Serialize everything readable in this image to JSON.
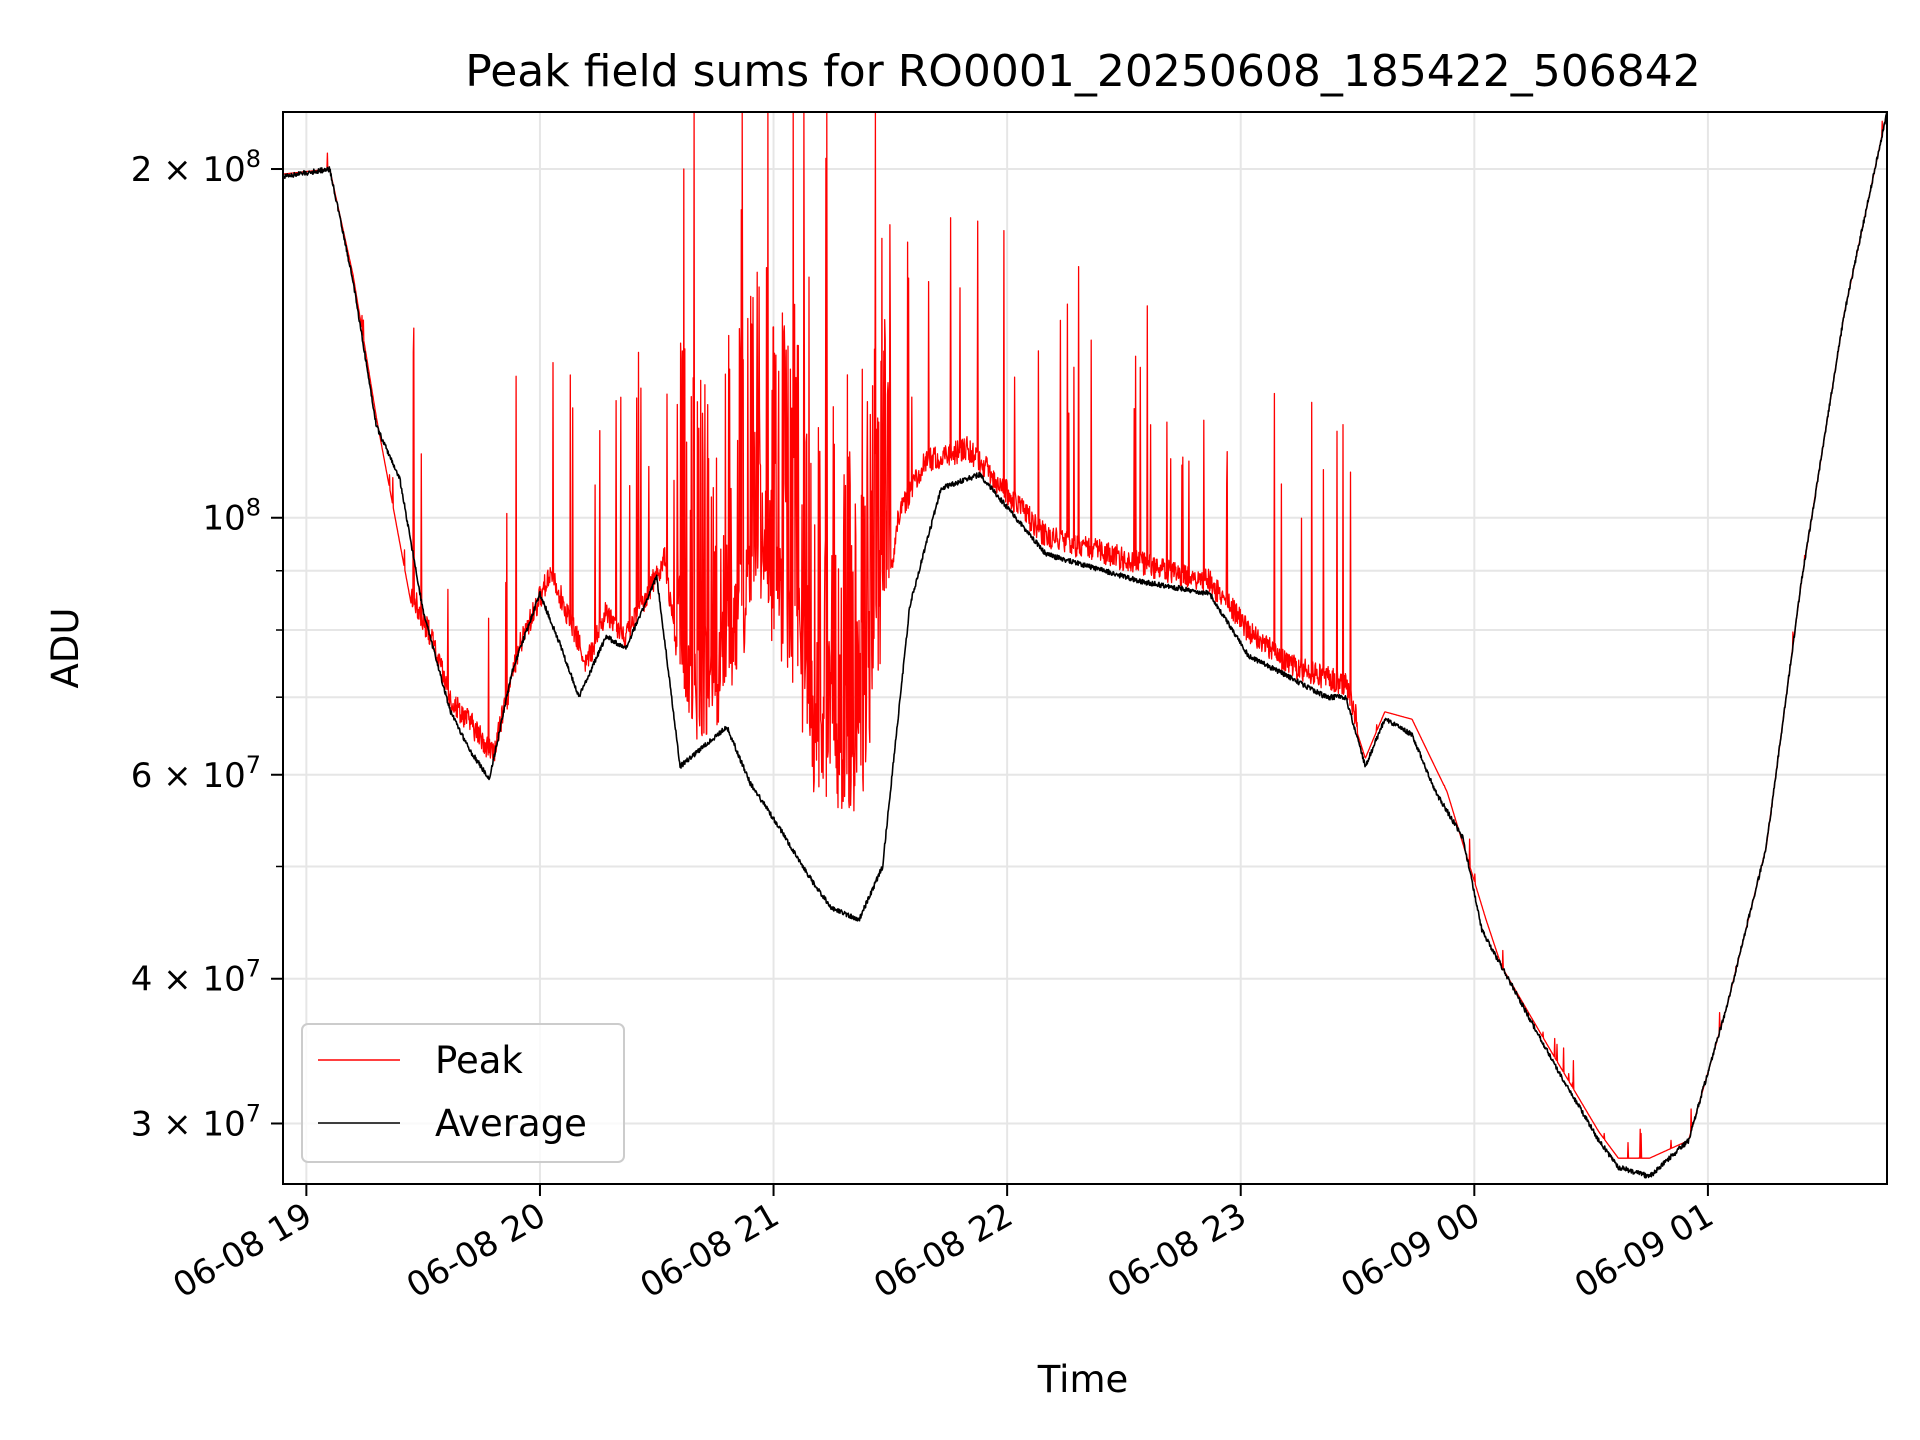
{
  "chart_data": {
    "type": "line",
    "title": "Peak field sums for RO0001_20250608_185422_506842",
    "xlabel": "Time",
    "ylabel": "ADU",
    "x_unit": "datetime",
    "xlim": [
      "2025-06-08 18:54",
      "2025-06-09 01:46"
    ],
    "ylim": [
      26600000,
      224000000
    ],
    "yscale": "log",
    "grid": true,
    "legend_position": "lower-left",
    "x_ticks": [
      {
        "value": "2025-06-08 19:00",
        "label": "06-08 19"
      },
      {
        "value": "2025-06-08 20:00",
        "label": "06-08 20"
      },
      {
        "value": "2025-06-08 21:00",
        "label": "06-08 21"
      },
      {
        "value": "2025-06-08 22:00",
        "label": "06-08 22"
      },
      {
        "value": "2025-06-08 23:00",
        "label": "06-08 23"
      },
      {
        "value": "2025-06-09 00:00",
        "label": "06-09 00"
      },
      {
        "value": "2025-06-09 01:00",
        "label": "06-09 01"
      }
    ],
    "y_ticks": [
      {
        "value": 30000000,
        "mantissa": "3",
        "exp": "7"
      },
      {
        "value": 40000000,
        "mantissa": "4",
        "exp": "7"
      },
      {
        "value": 60000000,
        "mantissa": "6",
        "exp": "7"
      },
      {
        "value": 100000000,
        "mantissa": "",
        "exp": "8"
      },
      {
        "value": 200000000,
        "mantissa": "2",
        "exp": "8"
      }
    ],
    "series": [
      {
        "name": "Peak",
        "color": "#ff0000",
        "x": [
          "2025-06-08 18:54",
          "2025-06-08 19:06",
          "2025-06-08 19:12",
          "2025-06-08 19:18",
          "2025-06-08 19:27",
          "2025-06-08 19:32",
          "2025-06-08 19:37",
          "2025-06-08 19:42",
          "2025-06-08 19:48",
          "2025-06-08 19:55",
          "2025-06-08 20:03",
          "2025-06-08 20:05",
          "2025-06-08 20:12",
          "2025-06-08 20:17",
          "2025-06-08 20:22",
          "2025-06-08 20:32",
          "2025-06-08 20:38",
          "2025-06-08 20:46",
          "2025-06-08 20:50",
          "2025-06-08 20:56",
          "2025-06-08 21:03",
          "2025-06-08 21:07",
          "2025-06-08 21:10",
          "2025-06-08 21:16",
          "2025-06-08 21:22",
          "2025-06-08 21:26",
          "2025-06-08 21:32",
          "2025-06-08 21:39",
          "2025-06-08 21:50",
          "2025-06-08 22:10",
          "2025-06-08 22:35",
          "2025-06-08 22:52",
          "2025-06-08 23:02",
          "2025-06-08 23:12",
          "2025-06-08 23:27",
          "2025-06-08 23:32",
          "2025-06-08 23:37",
          "2025-06-08 23:44",
          "2025-06-08 23:53",
          "2025-06-09 00:03",
          "2025-06-09 00:07",
          "2025-06-09 00:20",
          "2025-06-09 00:32",
          "2025-06-09 00:37",
          "2025-06-09 00:45",
          "2025-06-09 00:55",
          "2025-06-09 01:05",
          "2025-06-09 01:15",
          "2025-06-09 01:24",
          "2025-06-09 01:35",
          "2025-06-09 01:46"
        ],
        "values": [
          198000000,
          200000000,
          162000000,
          122000000,
          84000000,
          77000000,
          68000000,
          65000000,
          61000000,
          76000000,
          88000000,
          84000000,
          73000000,
          81000000,
          77000000,
          90000000,
          63000000,
          66000000,
          72000000,
          82000000,
          74000000,
          66000000,
          58000000,
          55000000,
          54000000,
          68000000,
          98000000,
          109000000,
          112000000,
          94000000,
          89000000,
          86000000,
          78000000,
          73000000,
          70000000,
          62000000,
          68000000,
          67000000,
          58000000,
          45000000,
          41000000,
          34500000,
          29500000,
          28000000,
          28000000,
          29000000,
          38000000,
          52000000,
          88000000,
          150000000,
          224000000
        ]
      },
      {
        "name": "Average",
        "color": "#000000",
        "x": [
          "2025-06-08 18:54",
          "2025-06-08 19:06",
          "2025-06-08 19:12",
          "2025-06-08 19:18",
          "2025-06-08 19:24",
          "2025-06-08 19:30",
          "2025-06-08 19:37",
          "2025-06-08 19:42",
          "2025-06-08 19:47",
          "2025-06-08 19:53",
          "2025-06-08 20:00",
          "2025-06-08 20:05",
          "2025-06-08 20:10",
          "2025-06-08 20:17",
          "2025-06-08 20:22",
          "2025-06-08 20:30",
          "2025-06-08 20:36",
          "2025-06-08 20:48",
          "2025-06-08 20:54",
          "2025-06-08 21:00",
          "2025-06-08 21:06",
          "2025-06-08 21:10",
          "2025-06-08 21:15",
          "2025-06-08 21:22",
          "2025-06-08 21:28",
          "2025-06-08 21:35",
          "2025-06-08 21:43",
          "2025-06-08 21:53",
          "2025-06-08 22:10",
          "2025-06-08 22:35",
          "2025-06-08 22:52",
          "2025-06-08 23:02",
          "2025-06-08 23:12",
          "2025-06-08 23:22",
          "2025-06-08 23:27",
          "2025-06-08 23:32",
          "2025-06-08 23:37",
          "2025-06-08 23:44",
          "2025-06-08 23:50",
          "2025-06-08 23:57",
          "2025-06-09 00:02",
          "2025-06-09 00:07",
          "2025-06-09 00:20",
          "2025-06-09 00:32",
          "2025-06-09 00:37",
          "2025-06-09 00:45",
          "2025-06-09 00:55",
          "2025-06-09 01:05",
          "2025-06-09 01:15",
          "2025-06-09 01:24",
          "2025-06-09 01:35",
          "2025-06-09 01:46"
        ],
        "values": [
          197000000,
          200000000,
          160000000,
          120000000,
          108000000,
          83000000,
          68000000,
          63000000,
          59500000,
          74000000,
          86000000,
          78000000,
          70000000,
          79000000,
          77000000,
          89000000,
          61000000,
          66000000,
          59000000,
          55000000,
          51000000,
          48500000,
          46000000,
          45000000,
          50000000,
          84000000,
          106000000,
          109000000,
          93000000,
          88000000,
          86000000,
          76000000,
          73000000,
          70000000,
          70000000,
          61000000,
          67000000,
          65000000,
          58000000,
          53000000,
          44000000,
          41000000,
          34000000,
          29000000,
          27500000,
          27000000,
          29000000,
          38000000,
          52000000,
          88000000,
          150000000,
          224000000
        ]
      }
    ]
  }
}
